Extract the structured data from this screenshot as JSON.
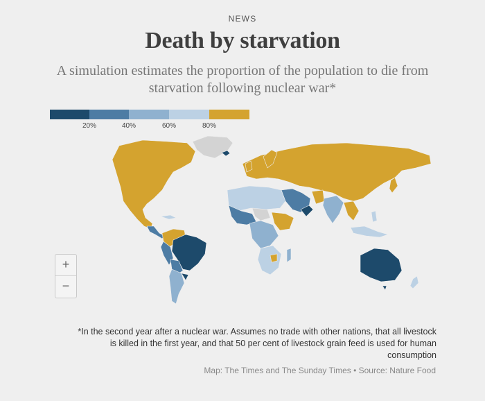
{
  "kicker": "NEWS",
  "title": "Death by starvation",
  "subtitle": "A simulation estimates the proportion of the population to die from starvation following nuclear war*",
  "legend": {
    "colors": [
      "#1d4a6b",
      "#4d7ca4",
      "#8fb1cf",
      "#bcd1e4",
      "#d4a32f"
    ],
    "ticks": [
      "20%",
      "40%",
      "60%",
      "80%"
    ]
  },
  "colors": {
    "land_no_data": "#d3d3d3",
    "very_high": "#d4a32f",
    "low": "#1d4a6b",
    "mid": "#4d7ca4",
    "mid_light": "#8fb1cf",
    "light": "#bcd1e4"
  },
  "zoom": {
    "in_label": "+",
    "out_label": "−"
  },
  "footnote": "*In the second year after a nuclear war. Assumes no trade with other nations, that all livestock is killed in the first year, and that 50 per cent of livestock grain feed is used for human consumption",
  "credit": "Map: The Times and The Sunday Times • Source: Nature Food"
}
